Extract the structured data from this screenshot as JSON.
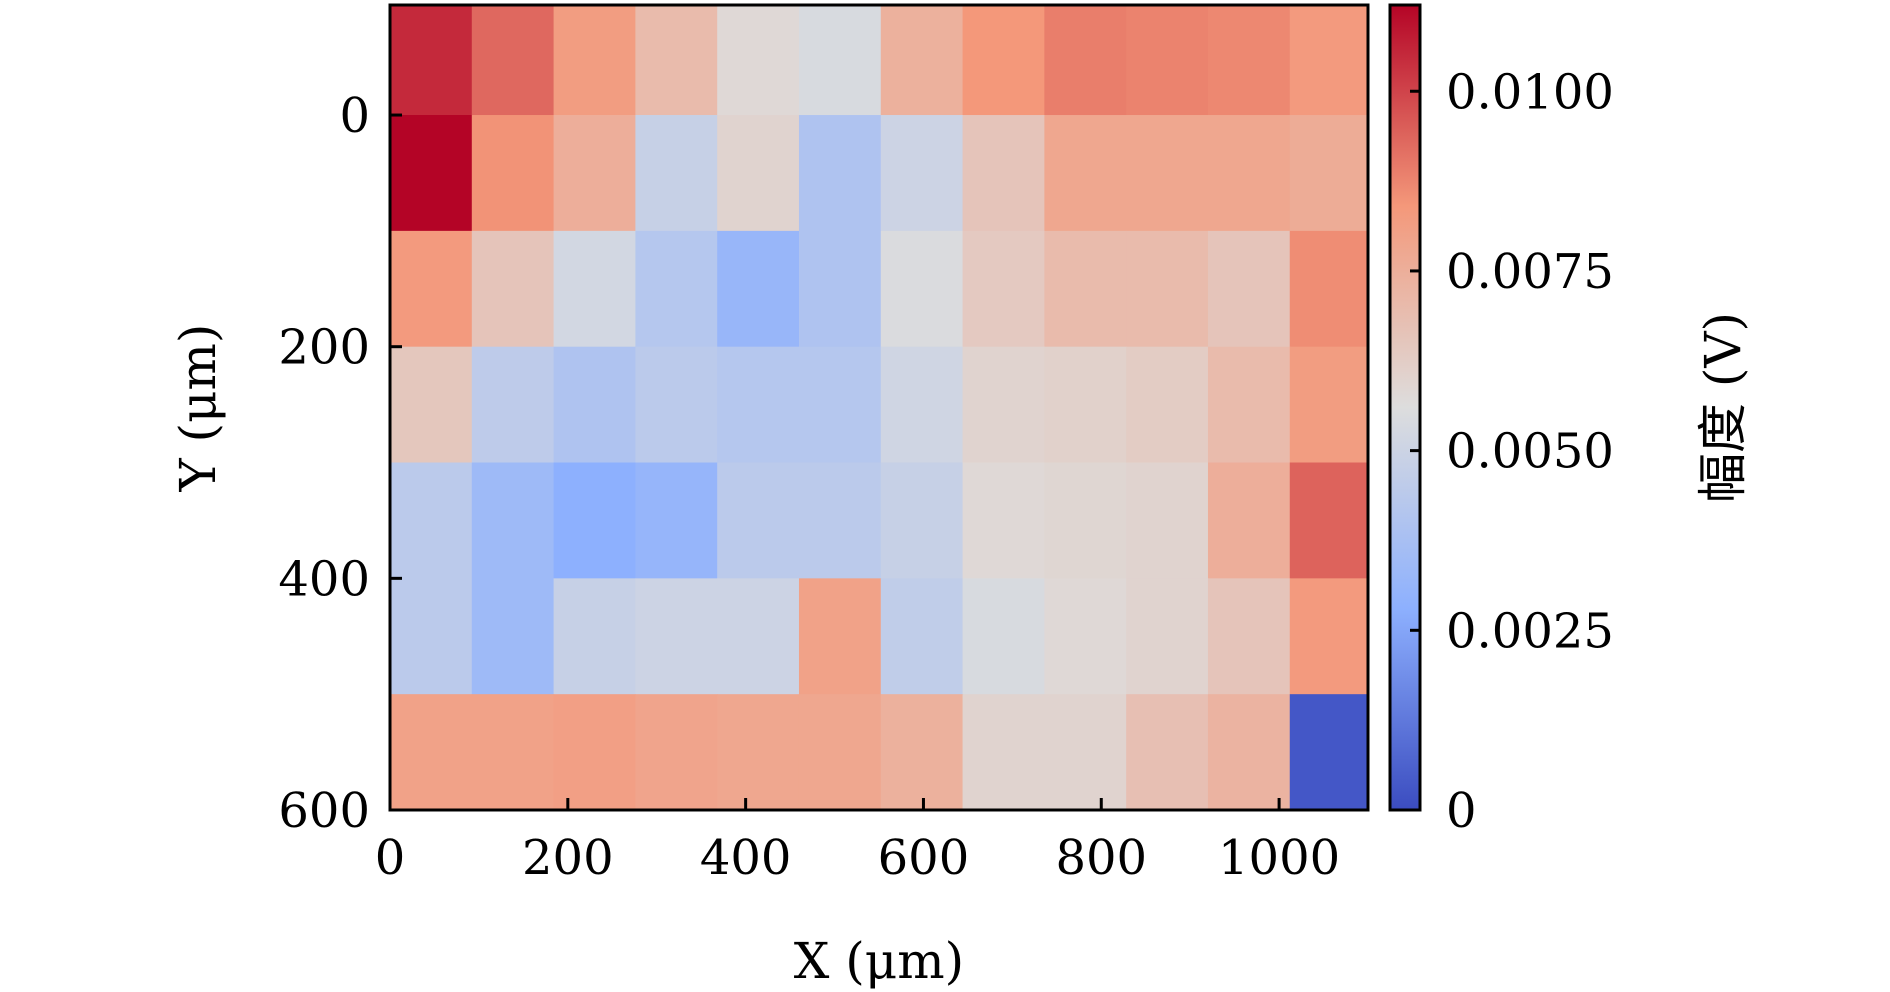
{
  "chart_data": {
    "type": "heatmap",
    "xlabel": "X (μm)",
    "ylabel": "Y (μm)",
    "colorbar_label": "幅度 (V)",
    "x_ticks": [
      "0",
      "200",
      "400",
      "600",
      "800",
      "1000"
    ],
    "y_ticks": [
      "0",
      "200",
      "400",
      "600"
    ],
    "colorbar_ticks": [
      "0",
      "0.0025",
      "0.0050",
      "0.0075",
      "0.0100"
    ],
    "x_range": [
      0,
      1100
    ],
    "y_range": [
      -95,
      600
    ],
    "y_inverted": true,
    "colorbar_range": [
      0,
      0.0112
    ],
    "colormap": "coolwarm",
    "grid": false,
    "cell_width_um": 92,
    "cell_height_um": 100,
    "x_centers": [
      46,
      138,
      230,
      322,
      414,
      506,
      598,
      690,
      782,
      874,
      966,
      1058
    ],
    "y_centers": [
      -45,
      50,
      150,
      250,
      350,
      450,
      550
    ],
    "values": [
      [
        0.0105,
        0.0093,
        0.0082,
        0.007,
        0.0058,
        0.0054,
        0.0074,
        0.0084,
        0.0089,
        0.0088,
        0.0087,
        0.0083
      ],
      [
        0.0112,
        0.0085,
        0.0075,
        0.0048,
        0.006,
        0.004,
        0.005,
        0.0066,
        0.0078,
        0.0078,
        0.0078,
        0.0076
      ],
      [
        0.0083,
        0.0066,
        0.0052,
        0.0042,
        0.0032,
        0.004,
        0.0055,
        0.0064,
        0.007,
        0.007,
        0.0066,
        0.0086
      ],
      [
        0.0065,
        0.0045,
        0.004,
        0.0044,
        0.0042,
        0.0042,
        0.0051,
        0.006,
        0.0061,
        0.0063,
        0.007,
        0.0082
      ],
      [
        0.0044,
        0.0034,
        0.0028,
        0.0031,
        0.0044,
        0.0044,
        0.0048,
        0.0058,
        0.0059,
        0.006,
        0.0075,
        0.0094
      ],
      [
        0.0044,
        0.0034,
        0.0048,
        0.005,
        0.005,
        0.008,
        0.0046,
        0.0054,
        0.0058,
        0.006,
        0.0066,
        0.0083
      ],
      [
        0.008,
        0.008,
        0.0081,
        0.0079,
        0.0078,
        0.0078,
        0.0074,
        0.006,
        0.006,
        0.0068,
        0.0073,
        0.0003
      ]
    ]
  }
}
